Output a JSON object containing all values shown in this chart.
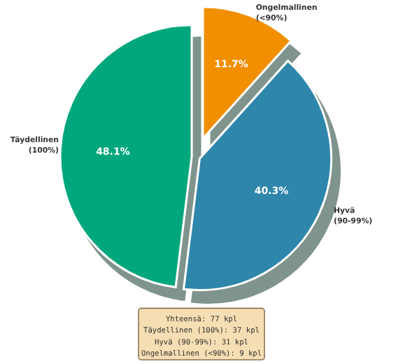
{
  "chart_data": {
    "type": "pie",
    "categories": [
      "Ongelmallinen\n(<90%)",
      "Hyvä\n(90-99%)",
      "Täydellinen\n(100%)"
    ],
    "values": [
      11.7,
      40.3,
      48.1
    ],
    "value_labels": [
      "11.7%",
      "40.3%",
      "48.1%"
    ],
    "colors": [
      "#f18f01",
      "#2e86ab",
      "#06a77d"
    ],
    "annotations": [
      "Yhteensä: 77 kpl",
      "Täydellinen (100%): 37 kpl",
      "Hyvä (90-99%): 31 kpl",
      "Ongelmallinen (<90%): 9 kpl"
    ]
  }
}
